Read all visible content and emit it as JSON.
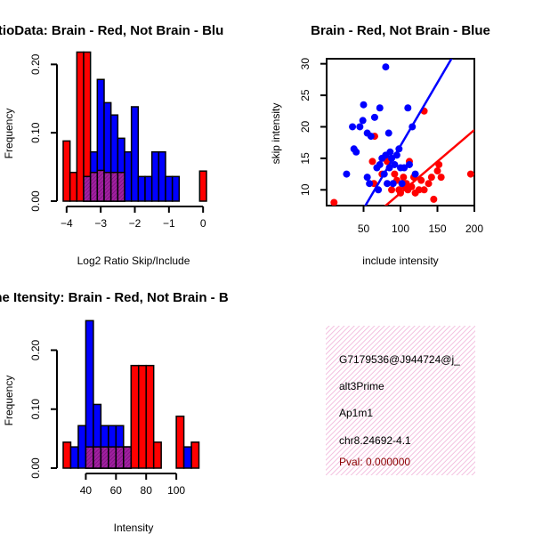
{
  "colors": {
    "red": "#ff0000",
    "blue": "#0000ff",
    "overlap": "#a020a0",
    "info_bg": "#fadcf0",
    "pval_text": "#8b0000"
  },
  "chart_data": [
    {
      "type": "bar",
      "id": "ratio-hist",
      "title": "RatioData: Brain - Red, Not Brain - Blu",
      "xlabel": "Log2 Ratio Skip/Include",
      "ylabel": "Frequency",
      "xlim": [
        -4.1,
        0.1
      ],
      "ylim": [
        0,
        0.22
      ],
      "x_ticks": [
        -4,
        -3,
        -2,
        -1,
        0
      ],
      "y_ticks": [
        0.0,
        0.1,
        0.2
      ],
      "y_tick_labels": [
        "0.00",
        "0.10",
        "0.20"
      ],
      "bin_edges": [
        -4.1,
        -3.9,
        -3.7,
        -3.5,
        -3.3,
        -3.1,
        -2.9,
        -2.7,
        -2.5,
        -2.3,
        -2.1,
        -1.9,
        -1.7,
        -1.5,
        -1.3,
        -1.1,
        -0.9,
        -0.7,
        -0.5,
        -0.3,
        -0.1,
        0.1
      ],
      "series": [
        {
          "name": "Brain",
          "color": "red",
          "values": [
            0.088,
            0.042,
            0.218,
            0.218,
            0.042,
            0.045,
            0.042,
            0.042,
            0.042,
            0,
            0,
            0,
            0,
            0,
            0,
            0,
            0,
            0,
            0,
            0,
            0.044
          ]
        },
        {
          "name": "Not Brain",
          "color": "blue",
          "values": [
            0,
            0,
            0,
            0.036,
            0.072,
            0.178,
            0.144,
            0.126,
            0.092,
            0.072,
            0.138,
            0.036,
            0.036,
            0.072,
            0.072,
            0.036,
            0.036,
            0,
            0,
            0,
            0
          ]
        }
      ]
    },
    {
      "type": "scatter",
      "id": "skip-scatter",
      "title": "Brain - Red, Not Brain - Blue",
      "xlabel": "include intensity",
      "ylabel": "skip intensity",
      "xlim": [
        0,
        200
      ],
      "ylim": [
        7.5,
        30.8
      ],
      "x_ticks": [
        50,
        100,
        150,
        200
      ],
      "y_ticks": [
        10,
        15,
        20,
        25,
        30
      ],
      "series": [
        {
          "name": "Brain",
          "color": "red",
          "points": [
            [
              10,
              8
            ],
            [
              62,
              14.5
            ],
            [
              64,
              11
            ],
            [
              65,
              18.5
            ],
            [
              75,
              12.5
            ],
            [
              82,
              14.5
            ],
            [
              88,
              10
            ],
            [
              92,
              12.5
            ],
            [
              95,
              11.5
            ],
            [
              98,
              10
            ],
            [
              100,
              9.5
            ],
            [
              102,
              11
            ],
            [
              104,
              12
            ],
            [
              106,
              10.5
            ],
            [
              108,
              11
            ],
            [
              110,
              10
            ],
            [
              112,
              14.5
            ],
            [
              115,
              10.5
            ],
            [
              118,
              12
            ],
            [
              120,
              9.5
            ],
            [
              125,
              10
            ],
            [
              128,
              11.5
            ],
            [
              132,
              10
            ],
            [
              138,
              11
            ],
            [
              142,
              12
            ],
            [
              145,
              8.5
            ],
            [
              150,
              13
            ],
            [
              152,
              14
            ],
            [
              155,
              12
            ],
            [
              132,
              22.5
            ],
            [
              195,
              12.5
            ]
          ],
          "fit": {
            "slope": 0.1,
            "intercept": -0.5
          }
        },
        {
          "name": "Not Brain",
          "color": "blue",
          "points": [
            [
              80,
              29.5
            ],
            [
              27,
              12.5
            ],
            [
              35,
              20
            ],
            [
              37,
              16.5
            ],
            [
              40,
              16
            ],
            [
              45,
              20
            ],
            [
              49,
              21
            ],
            [
              50,
              23.5
            ],
            [
              55,
              19
            ],
            [
              55,
              12
            ],
            [
              58,
              11
            ],
            [
              60,
              18.5
            ],
            [
              65,
              21.5
            ],
            [
              68,
              13.5
            ],
            [
              70,
              10
            ],
            [
              72,
              23
            ],
            [
              72,
              14
            ],
            [
              75,
              15
            ],
            [
              78,
              12.5
            ],
            [
              80,
              15.5
            ],
            [
              82,
              11
            ],
            [
              84,
              19
            ],
            [
              85,
              13.5
            ],
            [
              86,
              16
            ],
            [
              88,
              15
            ],
            [
              90,
              11
            ],
            [
              92,
              14
            ],
            [
              95,
              15.5
            ],
            [
              98,
              16.5
            ],
            [
              100,
              13.5
            ],
            [
              102,
              11
            ],
            [
              105,
              13.5
            ],
            [
              110,
              23
            ],
            [
              112,
              14
            ],
            [
              116,
              20
            ],
            [
              120,
              12.5
            ]
          ],
          "fit": {
            "slope": 0.2,
            "intercept": -3
          }
        }
      ]
    },
    {
      "type": "bar",
      "id": "gene-hist",
      "title": "Gene Itensity: Brain - Red, Not Brain - B",
      "xlabel": "Intensity",
      "ylabel": "Frequency",
      "xlim": [
        25,
        120
      ],
      "ylim": [
        0,
        0.255
      ],
      "x_ticks": [
        40,
        60,
        80,
        100
      ],
      "y_ticks": [
        0.0,
        0.1,
        0.2
      ],
      "y_tick_labels": [
        "0.00",
        "0.10",
        "0.20"
      ],
      "bin_edges": [
        25,
        30,
        35,
        40,
        45,
        50,
        55,
        60,
        65,
        70,
        75,
        80,
        85,
        90,
        95,
        100,
        105,
        110,
        115,
        120
      ],
      "series": [
        {
          "name": "Brain",
          "color": "red",
          "values": [
            0.044,
            0,
            0,
            0.036,
            0.036,
            0.036,
            0.036,
            0.036,
            0.036,
            0.174,
            0.174,
            0.174,
            0.044,
            0,
            0,
            0.088,
            0,
            0.044,
            0
          ]
        },
        {
          "name": "Not Brain",
          "color": "blue",
          "values": [
            0,
            0.036,
            0.072,
            0.25,
            0.108,
            0.072,
            0.072,
            0.072,
            0.036,
            0,
            0,
            0,
            0,
            0,
            0,
            0,
            0.036,
            0,
            0
          ]
        }
      ]
    }
  ],
  "info_box": {
    "id_line": "G7179536@J944724@j_",
    "event_type": "alt3Prime",
    "gene": "Ap1m1",
    "location": "chr8.24692-4.1",
    "pval": "Pval: 0.000000"
  }
}
